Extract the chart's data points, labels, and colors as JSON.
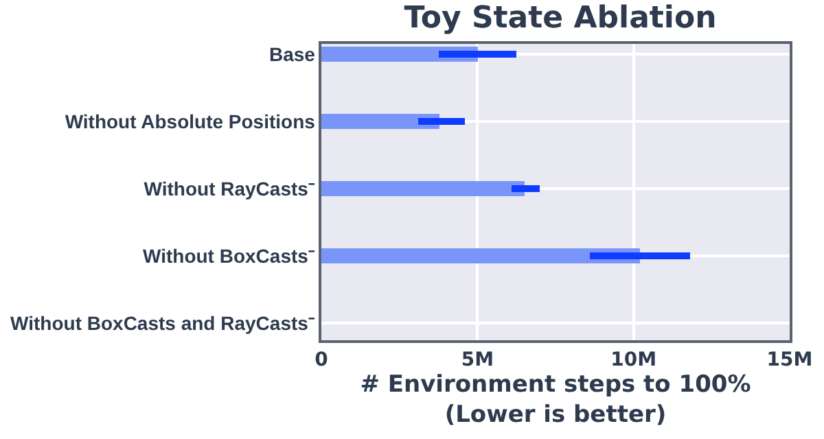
{
  "chart_data": {
    "type": "bar",
    "orientation": "horizontal",
    "title": "Toy State Ablation",
    "xlabel": "# Environment steps to 100%\n(Lower is better)",
    "categories": [
      "Base",
      "Without Absolute Positions",
      "Without RayCasts⁻",
      "Without BoxCasts⁻",
      "Without BoxCasts and RayCasts⁻"
    ],
    "series": [
      {
        "color": "#7a95fa",
        "values": [
          5000000,
          3800000,
          6500000,
          10200000,
          null
        ],
        "errors": [
          [
            3750000,
            6250000
          ],
          [
            3100000,
            4600000
          ],
          [
            6100000,
            7000000
          ],
          [
            8600000,
            11800000
          ],
          null
        ]
      }
    ],
    "xlim": [
      0,
      15000000
    ],
    "xticks": [
      {
        "value": 0,
        "label": "0"
      },
      {
        "value": 5000000,
        "label": "5M"
      },
      {
        "value": 10000000,
        "label": "10M"
      },
      {
        "value": 15000000,
        "label": "15M"
      }
    ],
    "grid": true
  }
}
